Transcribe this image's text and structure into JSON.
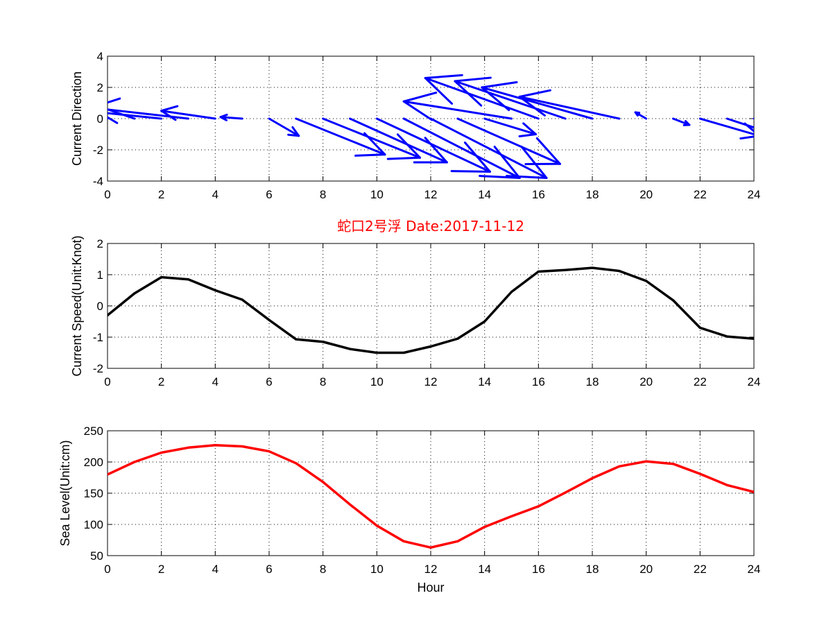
{
  "colors": {
    "quiver": "#0000ff",
    "speed": "#000000",
    "sea_level": "#ff0000",
    "title": "#ff0000"
  },
  "chart_data": [
    {
      "type": "quiver",
      "title": "",
      "xlabel": "",
      "ylabel": "Current Direction",
      "xlim": [
        0,
        24
      ],
      "ylim": [
        -4,
        4
      ],
      "xticks": [
        "0",
        "2",
        "4",
        "6",
        "8",
        "10",
        "12",
        "14",
        "16",
        "18",
        "20",
        "22",
        "24"
      ],
      "yticks": [
        "-4",
        "-2",
        "0",
        "2",
        "4"
      ],
      "grid": true,
      "x": [
        0,
        1,
        2,
        3,
        4,
        5,
        6,
        7,
        8,
        9,
        10,
        11,
        12,
        13,
        14,
        15,
        16,
        17,
        18,
        19,
        20,
        21,
        22,
        23,
        24
      ],
      "u": [
        -1.0,
        -2.2,
        -4.0,
        -3.6,
        -2.0,
        -0.8,
        1.1,
        3.3,
        3.6,
        3.6,
        4.2,
        4.3,
        4.3,
        3.8,
        1.9,
        -4.0,
        -4.2,
        -4.1,
        -4.1,
        -3.7,
        -0.4,
        0.6,
        2.2,
        3.0,
        2.8
      ],
      "v": [
        0.6,
        1.3,
        0.7,
        0.7,
        0.5,
        0.1,
        -1.1,
        -2.3,
        -2.5,
        -2.8,
        -3.4,
        -3.8,
        -3.8,
        -2.9,
        -1.0,
        1.1,
        2.6,
        2.4,
        2.0,
        1.4,
        0.4,
        -0.4,
        -1.1,
        -1.7,
        -1.5
      ]
    },
    {
      "type": "line",
      "title": "蛇口2号浮    Date:2017-11-12",
      "xlabel": "",
      "ylabel": "Current Speed(Unit:Knot)",
      "xlim": [
        0,
        24
      ],
      "ylim": [
        -2,
        2
      ],
      "xticks": [
        "0",
        "2",
        "4",
        "6",
        "8",
        "10",
        "12",
        "14",
        "16",
        "18",
        "20",
        "22",
        "24"
      ],
      "yticks": [
        "-2",
        "-1",
        "0",
        "1",
        "2"
      ],
      "grid": true,
      "x": [
        0,
        1,
        2,
        3,
        4,
        5,
        6,
        7,
        8,
        9,
        10,
        11,
        12,
        13,
        14,
        15,
        16,
        17,
        18,
        19,
        20,
        21,
        22,
        23,
        24
      ],
      "values": [
        -0.3,
        0.4,
        0.92,
        0.85,
        0.5,
        0.2,
        -0.45,
        -1.07,
        -1.15,
        -1.38,
        -1.5,
        -1.5,
        -1.3,
        -1.05,
        -0.5,
        0.45,
        1.1,
        1.15,
        1.22,
        1.12,
        0.8,
        0.18,
        -0.7,
        -0.98,
        -1.05
      ]
    },
    {
      "type": "line",
      "title": "",
      "xlabel": "Hour",
      "ylabel": "Sea Level(Unit:cm)",
      "xlim": [
        0,
        24
      ],
      "ylim": [
        50,
        250
      ],
      "xticks": [
        "0",
        "2",
        "4",
        "6",
        "8",
        "10",
        "12",
        "14",
        "16",
        "18",
        "20",
        "22",
        "24"
      ],
      "yticks": [
        "50",
        "100",
        "150",
        "200",
        "250"
      ],
      "grid": true,
      "x": [
        0,
        1,
        2,
        3,
        4,
        5,
        6,
        7,
        8,
        9,
        10,
        11,
        12,
        13,
        14,
        15,
        16,
        17,
        18,
        19,
        20,
        21,
        22,
        23,
        24
      ],
      "values": [
        180,
        200,
        215,
        223,
        227,
        225,
        217,
        198,
        168,
        132,
        98,
        73,
        63,
        73,
        96,
        113,
        129,
        151,
        174,
        193,
        201,
        197,
        181,
        163,
        152
      ]
    }
  ]
}
